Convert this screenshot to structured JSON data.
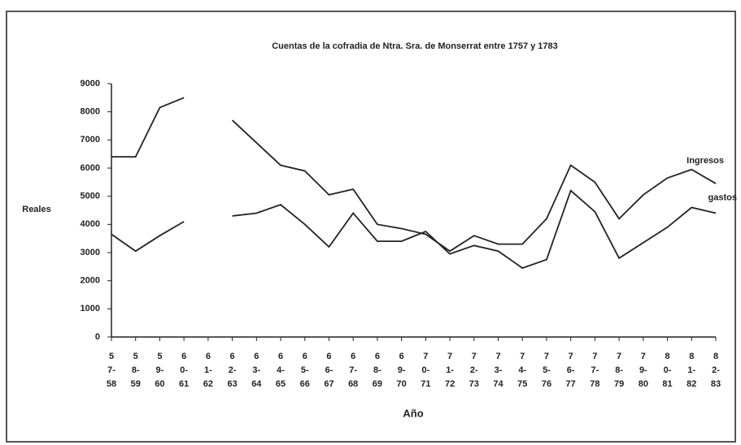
{
  "chart_data": {
    "type": "line",
    "title": "Cuentas de la cofradia de Ntra. Sra. de Monserrat entre 1757 y 1783",
    "y_label": "Reales",
    "x_label": "Año",
    "categories": [
      "5\n7-\n58",
      "5\n8-\n59",
      "5\n9-\n60",
      "6\n0-\n61",
      "6\n1-\n62",
      "6\n2-\n63",
      "6\n3-\n64",
      "6\n4-\n65",
      "6\n5-\n66",
      "6\n6-\n67",
      "6\n7-\n68",
      "6\n8-\n69",
      "6\n9-\n70",
      "7\n0-\n71",
      "7\n1-\n72",
      "7\n2-\n73",
      "7\n3-\n74",
      "7\n4-\n75",
      "7\n5-\n76",
      "7\n6-\n77",
      "7\n7-\n78",
      "7\n8-\n79",
      "7\n9-\n80",
      "8\n0-\n81",
      "8\n1-\n82",
      "8\n2-\n83"
    ],
    "series": [
      {
        "name": "Ingresos",
        "color": "#222222",
        "values": [
          6400,
          6400,
          8150,
          8500,
          null,
          7700,
          6900,
          6100,
          5900,
          5050,
          5250,
          4000,
          3850,
          3650,
          3050,
          3600,
          3300,
          3300,
          4200,
          6100,
          5500,
          4200,
          5050,
          5650,
          5950,
          5450
        ]
      },
      {
        "name": "gastos",
        "color": "#222222",
        "values": [
          3650,
          3050,
          3600,
          4100,
          null,
          4300,
          4400,
          4700,
          4000,
          3200,
          4400,
          3400,
          3400,
          3750,
          2950,
          3250,
          3050,
          2450,
          2750,
          5200,
          4450,
          2800,
          3350,
          3900,
          4600,
          4400
        ]
      }
    ],
    "ylim": [
      0,
      9000
    ],
    "yticks": [
      0,
      1000,
      2000,
      3000,
      4000,
      5000,
      6000,
      7000,
      8000,
      9000
    ],
    "grid": false
  }
}
